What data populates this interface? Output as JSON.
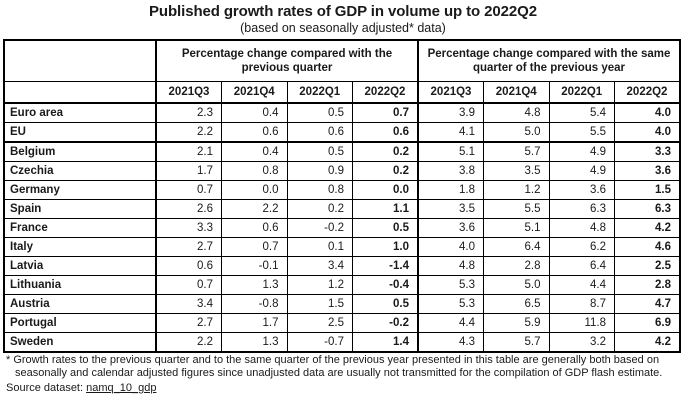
{
  "title": "Published growth rates of GDP in volume up to 2022Q2",
  "subtitle": "(based on seasonally adjusted* data)",
  "table": {
    "group_headers": [
      "Percentage change compared with the previous quarter",
      "Percentage change compared with the same quarter of the previous year"
    ],
    "quarter_headers": [
      "2021Q3",
      "2021Q4",
      "2022Q1",
      "2022Q2",
      "2021Q3",
      "2021Q4",
      "2022Q1",
      "2022Q2"
    ],
    "rows": [
      {
        "label": "Euro area",
        "values": [
          "2.3",
          "0.4",
          "0.5",
          "0.7",
          "3.9",
          "4.8",
          "5.4",
          "4.0"
        ]
      },
      {
        "label": "EU",
        "values": [
          "2.2",
          "0.6",
          "0.6",
          "0.6",
          "4.1",
          "5.0",
          "5.5",
          "4.0"
        ]
      },
      {
        "label": "Belgium",
        "values": [
          "2.1",
          "0.4",
          "0.5",
          "0.2",
          "5.1",
          "5.7",
          "4.9",
          "3.3"
        ]
      },
      {
        "label": "Czechia",
        "values": [
          "1.7",
          "0.8",
          "0.9",
          "0.2",
          "3.8",
          "3.5",
          "4.9",
          "3.6"
        ]
      },
      {
        "label": "Germany",
        "values": [
          "0.7",
          "0.0",
          "0.8",
          "0.0",
          "1.8",
          "1.2",
          "3.6",
          "1.5"
        ]
      },
      {
        "label": "Spain",
        "values": [
          "2.6",
          "2.2",
          "0.2",
          "1.1",
          "3.5",
          "5.5",
          "6.3",
          "6.3"
        ]
      },
      {
        "label": "France",
        "values": [
          "3.3",
          "0.6",
          "-0.2",
          "0.5",
          "3.6",
          "5.1",
          "4.8",
          "4.2"
        ]
      },
      {
        "label": "Italy",
        "values": [
          "2.7",
          "0.7",
          "0.1",
          "1.0",
          "4.0",
          "6.4",
          "6.2",
          "4.6"
        ]
      },
      {
        "label": "Latvia",
        "values": [
          "0.6",
          "-0.1",
          "3.4",
          "-1.4",
          "4.8",
          "2.8",
          "6.4",
          "2.5"
        ]
      },
      {
        "label": "Lithuania",
        "values": [
          "0.7",
          "1.3",
          "1.2",
          "-0.4",
          "5.3",
          "5.0",
          "4.4",
          "2.8"
        ]
      },
      {
        "label": "Austria",
        "values": [
          "3.4",
          "-0.8",
          "1.5",
          "0.5",
          "5.3",
          "6.5",
          "8.7",
          "4.7"
        ]
      },
      {
        "label": "Portugal",
        "values": [
          "2.7",
          "1.7",
          "2.5",
          "-0.2",
          "4.4",
          "5.9",
          "11.8",
          "6.9"
        ]
      },
      {
        "label": "Sweden",
        "values": [
          "2.2",
          "1.3",
          "-0.7",
          "1.4",
          "4.3",
          "5.7",
          "3.2",
          "4.2"
        ]
      }
    ]
  },
  "footnote": {
    "line1": "* Growth rates to the previous quarter and to the same quarter of the previous year presented in this table are generally both based on",
    "line2": "seasonally and calendar adjusted figures since unadjusted data are usually not transmitted for the compilation of GDP flash estimate."
  },
  "source": {
    "label": "Source dataset: ",
    "link": "namq_10_gdp"
  }
}
